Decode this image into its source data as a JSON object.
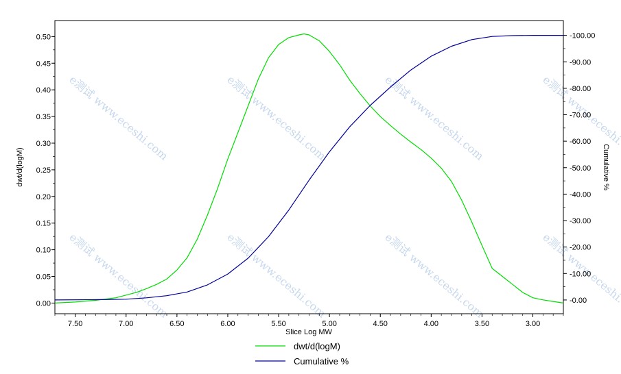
{
  "chart_data": {
    "type": "line",
    "xlabel": "Slice Log MW",
    "ylabel": "dwt/d(logM)",
    "y2label": "Cumulative %",
    "xlim": [
      7.7,
      2.7
    ],
    "ylim": [
      -0.02,
      0.53
    ],
    "y2lim": [
      -5.2,
      105.6
    ],
    "x_ticks": [
      "7.50",
      "7.00",
      "6.50",
      "6.00",
      "5.50",
      "5.00",
      "4.50",
      "4.00",
      "3.50",
      "3.00"
    ],
    "y_ticks": [
      "0.00",
      "0.05",
      "0.10",
      "0.15",
      "0.20",
      "0.25",
      "0.30",
      "0.35",
      "0.40",
      "0.45",
      "0.50"
    ],
    "y2_ticks": [
      "0.00",
      "10.00",
      "20.00",
      "30.00",
      "40.00",
      "50.00",
      "60.00",
      "70.00",
      "80.00",
      "90.00",
      "100.00"
    ],
    "legend_position": "bottom",
    "watermark_text": "e测试 www.eceshi.com",
    "series": [
      {
        "name": "dwt/d(logM)",
        "axis": "left",
        "color": "#00dd00",
        "x": [
          7.7,
          7.5,
          7.3,
          7.1,
          7.0,
          6.9,
          6.8,
          6.7,
          6.6,
          6.5,
          6.4,
          6.3,
          6.2,
          6.1,
          6.0,
          5.9,
          5.8,
          5.7,
          5.6,
          5.5,
          5.4,
          5.3,
          5.25,
          5.2,
          5.1,
          5.0,
          4.9,
          4.8,
          4.7,
          4.6,
          4.5,
          4.4,
          4.3,
          4.2,
          4.1,
          4.0,
          3.9,
          3.8,
          3.7,
          3.6,
          3.5,
          3.4,
          3.3,
          3.2,
          3.1,
          3.0,
          2.9,
          2.8,
          2.7
        ],
        "values": [
          0.0,
          0.002,
          0.005,
          0.01,
          0.015,
          0.02,
          0.027,
          0.035,
          0.045,
          0.062,
          0.085,
          0.12,
          0.165,
          0.215,
          0.27,
          0.32,
          0.37,
          0.42,
          0.46,
          0.485,
          0.498,
          0.503,
          0.505,
          0.503,
          0.492,
          0.472,
          0.447,
          0.418,
          0.393,
          0.37,
          0.35,
          0.333,
          0.317,
          0.302,
          0.288,
          0.272,
          0.253,
          0.228,
          0.193,
          0.152,
          0.108,
          0.065,
          0.05,
          0.035,
          0.02,
          0.01,
          0.006,
          0.003,
          0.0
        ]
      },
      {
        "name": "Cumulative %",
        "axis": "right",
        "color": "#000099",
        "x": [
          7.7,
          7.3,
          7.0,
          6.8,
          6.6,
          6.4,
          6.2,
          6.0,
          5.8,
          5.6,
          5.4,
          5.2,
          5.0,
          4.8,
          4.6,
          4.4,
          4.2,
          4.0,
          3.8,
          3.6,
          3.4,
          3.2,
          3.0,
          2.8,
          2.7
        ],
        "values": [
          0.0,
          0.1,
          0.3,
          0.8,
          1.6,
          3.0,
          5.7,
          9.8,
          15.8,
          23.9,
          34.0,
          45.3,
          56.0,
          65.5,
          73.5,
          80.5,
          86.9,
          92.1,
          95.9,
          98.4,
          99.6,
          99.9,
          100.0,
          100.0,
          100.0
        ]
      }
    ]
  }
}
